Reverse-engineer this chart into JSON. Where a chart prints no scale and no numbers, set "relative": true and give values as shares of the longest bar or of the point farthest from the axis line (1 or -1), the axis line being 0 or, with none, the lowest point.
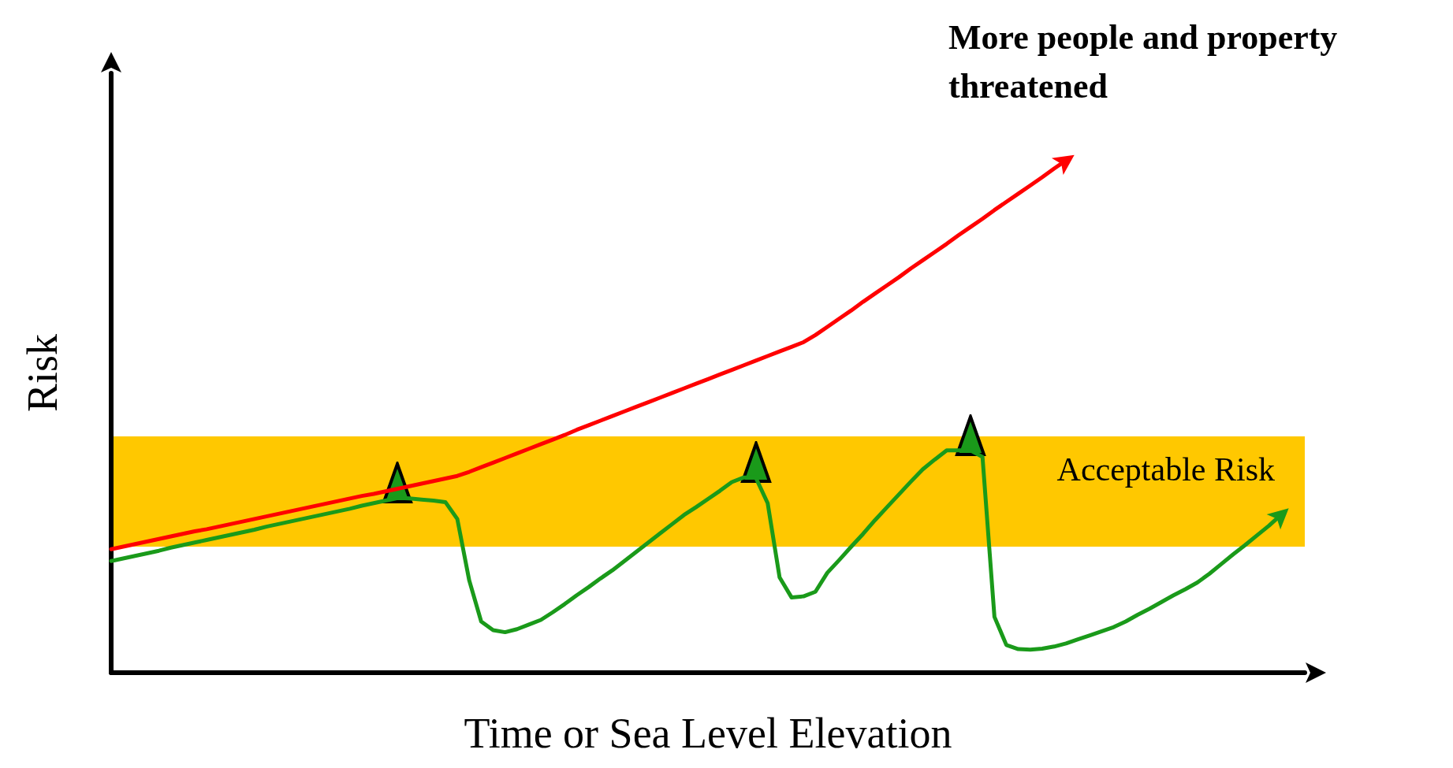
{
  "chart_data": {
    "type": "line",
    "relative": true,
    "xlabel": "Time or Sea Level Elevation",
    "ylabel": "Risk",
    "tick_labels": false,
    "grid": false,
    "line_style": "solid",
    "annotations": [
      "More people and property threatened"
    ],
    "bands": [
      {
        "axis": "y",
        "from": 0.246,
        "to": 0.462,
        "label": "Acceptable Risk",
        "color": "#ffc800"
      }
    ],
    "categories": [
      null,
      null,
      null,
      null,
      null,
      null,
      null,
      null,
      null,
      null,
      null,
      null,
      null,
      null,
      null,
      null,
      null,
      null,
      null,
      null,
      null,
      null,
      null,
      null,
      null,
      null,
      null,
      null,
      null,
      null,
      null,
      null,
      null,
      null,
      null,
      null,
      null,
      null,
      null,
      null,
      null,
      null,
      null,
      null,
      null,
      null,
      null,
      null,
      null,
      null,
      null,
      null,
      null,
      null,
      null,
      null,
      null,
      null,
      null,
      null,
      null,
      null,
      null,
      null,
      null,
      null,
      null,
      null,
      null,
      null,
      null,
      null,
      null,
      null,
      null,
      null,
      null,
      null,
      null,
      null,
      null,
      null,
      null,
      null,
      null,
      null,
      null,
      null,
      null,
      null,
      null,
      null,
      null,
      null,
      null,
      null,
      null,
      null,
      null,
      null,
      null
    ],
    "series": [
      {
        "color": "#ff0000",
        "values": [
          0.241,
          0.246,
          0.251,
          0.256,
          0.261,
          0.266,
          0.271,
          0.276,
          0.28,
          0.285,
          0.29,
          0.295,
          0.3,
          0.305,
          0.31,
          0.315,
          0.32,
          0.325,
          0.33,
          0.335,
          0.34,
          0.345,
          0.349,
          0.354,
          0.359,
          0.364,
          0.369,
          0.374,
          0.379,
          0.384,
          0.392,
          0.401,
          0.41,
          0.419,
          0.428,
          0.437,
          0.446,
          0.455,
          0.464,
          0.474,
          0.483,
          0.492,
          0.501,
          0.51,
          0.519,
          0.528,
          0.537,
          0.546,
          0.555,
          0.564,
          0.573,
          0.582,
          0.591,
          0.6,
          0.609,
          0.618,
          0.627,
          0.636,
          0.645,
          0.659,
          0.675,
          0.691,
          0.707,
          0.724,
          0.74,
          0.756,
          0.772,
          0.789,
          0.805,
          0.821,
          0.837,
          0.854,
          0.87,
          0.886,
          0.903,
          0.919,
          0.935,
          0.951,
          0.967,
          0.984,
          1.0,
          null,
          null,
          null,
          null,
          null,
          null,
          null,
          null,
          null,
          null,
          null,
          null,
          null,
          null,
          null,
          null,
          null,
          null,
          null,
          null
        ]
      },
      {
        "color": "#1a9a1a",
        "values": [
          0.218,
          0.223,
          0.228,
          0.233,
          0.238,
          0.244,
          0.249,
          0.254,
          0.259,
          0.264,
          0.269,
          0.274,
          0.279,
          0.285,
          0.29,
          0.295,
          0.3,
          0.305,
          0.31,
          0.315,
          0.32,
          0.326,
          0.331,
          0.336,
          0.341,
          0.34,
          0.338,
          0.336,
          0.333,
          0.3,
          0.18,
          0.1,
          0.083,
          0.079,
          0.085,
          0.094,
          0.103,
          0.118,
          0.134,
          0.151,
          0.167,
          0.184,
          0.2,
          0.218,
          0.236,
          0.254,
          0.272,
          0.29,
          0.308,
          0.323,
          0.339,
          0.355,
          0.372,
          0.381,
          0.381,
          0.331,
          0.186,
          0.147,
          0.149,
          0.158,
          0.195,
          0.22,
          0.246,
          0.271,
          0.298,
          0.323,
          0.348,
          0.373,
          0.397,
          0.416,
          0.434,
          0.434,
          0.434,
          0.421,
          0.109,
          0.054,
          0.046,
          0.045,
          0.047,
          0.051,
          0.057,
          0.065,
          0.073,
          0.081,
          0.089,
          0.1,
          0.113,
          0.125,
          0.138,
          0.151,
          0.163,
          0.176,
          0.193,
          0.212,
          0.231,
          0.249,
          0.268,
          0.287,
          0.308,
          null,
          null
        ]
      }
    ]
  }
}
